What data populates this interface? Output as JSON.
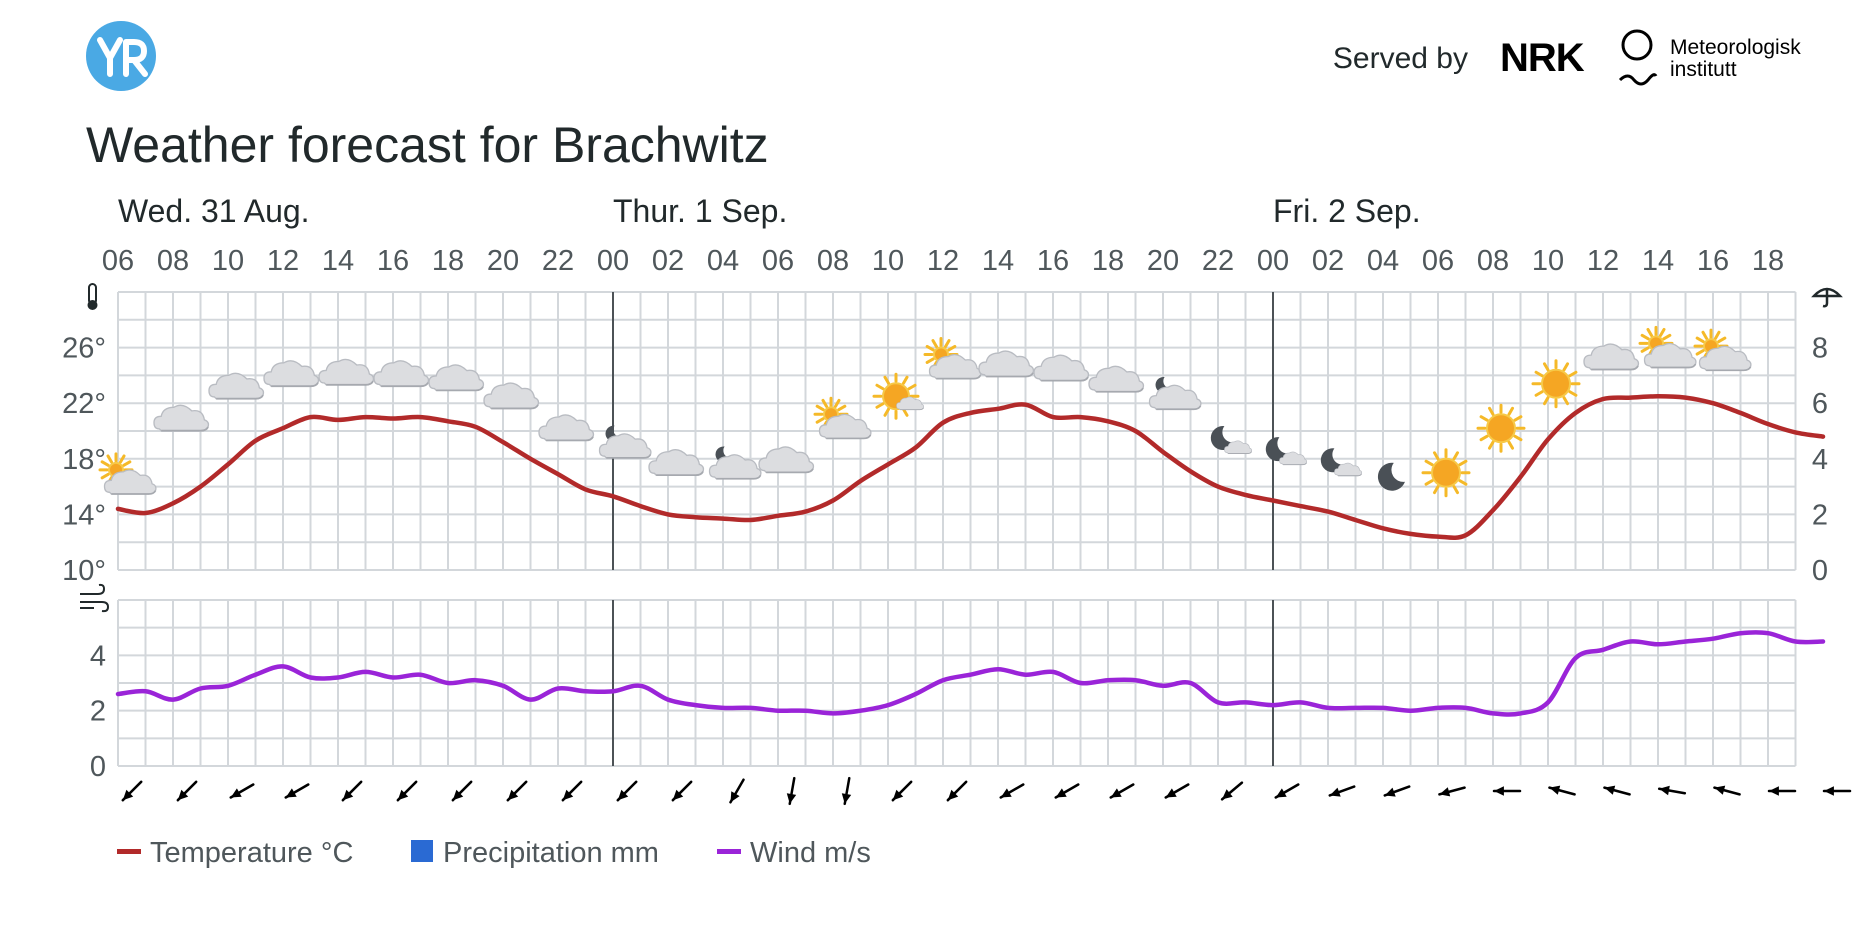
{
  "header": {
    "served_by": "Served by",
    "brand_nrk": "NRK",
    "brand_met": [
      "Meteorologisk",
      "institutt"
    ],
    "title": "Weather forecast for Brachwitz"
  },
  "colors": {
    "temperature": "#b22a2a",
    "precipitation": "#2a6ad3",
    "wind": "#9a24d8",
    "grid": "#d3d7db",
    "day_divider": "#4c5256",
    "yr_logo": "#4aa9e4"
  },
  "chart_data": {
    "type": "line",
    "x_unit": "hour",
    "start": "Wed. 31 Aug. 06",
    "x": [
      6,
      7,
      8,
      9,
      10,
      11,
      12,
      13,
      14,
      15,
      16,
      17,
      18,
      19,
      20,
      21,
      22,
      23,
      24,
      25,
      26,
      27,
      28,
      29,
      30,
      31,
      32,
      33,
      34,
      35,
      36,
      37,
      38,
      39,
      40,
      41,
      42,
      43,
      44,
      45,
      46,
      47,
      48,
      49,
      50,
      51,
      52,
      53,
      54,
      55,
      56,
      57,
      58,
      59,
      60,
      61,
      62,
      63,
      64,
      65,
      66,
      67,
      68
    ],
    "days": [
      {
        "label": "Wed. 31 Aug.",
        "start_hour": 6
      },
      {
        "label": "Thur. 1 Sep.",
        "start_hour": 24
      },
      {
        "label": "Fri. 2 Sep.",
        "start_hour": 48
      }
    ],
    "hour_ticks": [
      "06",
      "08",
      "10",
      "12",
      "14",
      "16",
      "18",
      "20",
      "22",
      "00",
      "02",
      "04",
      "06",
      "08",
      "10",
      "12",
      "14",
      "16",
      "18",
      "20",
      "22",
      "00",
      "02",
      "04",
      "06",
      "08",
      "10",
      "12",
      "14",
      "16",
      "18"
    ],
    "temperature": {
      "axis_ticks": [
        "10°",
        "14°",
        "18°",
        "22°",
        "26°"
      ],
      "ylim": [
        10,
        30
      ],
      "values": [
        14.4,
        14.1,
        14.8,
        16.0,
        17.6,
        19.3,
        20.2,
        21.0,
        20.8,
        21.0,
        20.9,
        21.0,
        20.7,
        20.3,
        19.2,
        18.0,
        16.9,
        15.8,
        15.3,
        14.6,
        14.0,
        13.8,
        13.7,
        13.6,
        13.9,
        14.2,
        15.0,
        16.4,
        17.6,
        18.8,
        20.6,
        21.3,
        21.6,
        21.9,
        21.0,
        21.0,
        20.7,
        20.0,
        18.5,
        17.1,
        16.0,
        15.4,
        15.0,
        14.6,
        14.2,
        13.6,
        13.0,
        12.6,
        12.4,
        12.5,
        14.3,
        16.7,
        19.4,
        21.3,
        22.3,
        22.4,
        22.5,
        22.4,
        22.0,
        21.3,
        20.5,
        19.9,
        19.6
      ]
    },
    "precipitation": {
      "axis_ticks": [
        "0",
        "2",
        "4",
        "6",
        "8"
      ],
      "ylim": [
        0,
        10
      ],
      "values": [
        0,
        0,
        0,
        0,
        0,
        0,
        0,
        0,
        0,
        0,
        0,
        0,
        0,
        0,
        0,
        0,
        0,
        0,
        0,
        0,
        0,
        0,
        0,
        0,
        0,
        0,
        0,
        0,
        0,
        0,
        0,
        0,
        0,
        0,
        0,
        0,
        0,
        0,
        0,
        0,
        0,
        0,
        0,
        0,
        0,
        0,
        0,
        0,
        0,
        0,
        0,
        0,
        0,
        0,
        0,
        0,
        0,
        0,
        0,
        0,
        0,
        0,
        0
      ]
    },
    "wind": {
      "axis_ticks": [
        "0",
        "2",
        "4"
      ],
      "ylim": [
        0,
        6
      ],
      "values": [
        2.6,
        2.7,
        2.4,
        2.8,
        2.9,
        3.3,
        3.6,
        3.2,
        3.2,
        3.4,
        3.2,
        3.3,
        3.0,
        3.1,
        2.9,
        2.4,
        2.8,
        2.7,
        2.7,
        2.9,
        2.4,
        2.2,
        2.1,
        2.1,
        2.0,
        2.0,
        1.9,
        2.0,
        2.2,
        2.6,
        3.1,
        3.3,
        3.5,
        3.3,
        3.4,
        3.0,
        3.1,
        3.1,
        2.9,
        3.0,
        2.3,
        2.3,
        2.2,
        2.3,
        2.1,
        2.1,
        2.1,
        2.0,
        2.1,
        2.1,
        1.9,
        1.9,
        2.3,
        3.9,
        4.2,
        4.5,
        4.4,
        4.5,
        4.6,
        4.8,
        4.8,
        4.5,
        4.5
      ]
    },
    "weather_icons": [
      {
        "hour": 6,
        "icon": "partly-cloudy-day",
        "temp": 16.2
      },
      {
        "hour": 8,
        "icon": "cloudy",
        "temp": 20.8
      },
      {
        "hour": 10,
        "icon": "cloudy",
        "temp": 23.1
      },
      {
        "hour": 12,
        "icon": "cloudy",
        "temp": 24.0
      },
      {
        "hour": 14,
        "icon": "cloudy",
        "temp": 24.1
      },
      {
        "hour": 16,
        "icon": "cloudy",
        "temp": 24.0
      },
      {
        "hour": 18,
        "icon": "cloudy",
        "temp": 23.7
      },
      {
        "hour": 20,
        "icon": "cloudy",
        "temp": 22.4
      },
      {
        "hour": 22,
        "icon": "cloudy",
        "temp": 20.1
      },
      {
        "hour": 24,
        "icon": "partly-cloudy-night",
        "temp": 18.8
      },
      {
        "hour": 26,
        "icon": "cloudy",
        "temp": 17.6
      },
      {
        "hour": 28,
        "icon": "partly-cloudy-night",
        "temp": 17.3
      },
      {
        "hour": 30,
        "icon": "cloudy",
        "temp": 17.8
      },
      {
        "hour": 32,
        "icon": "partly-cloudy-day",
        "temp": 20.2
      },
      {
        "hour": 34,
        "icon": "fair-day",
        "temp": 22.5
      },
      {
        "hour": 36,
        "icon": "partly-cloudy-day",
        "temp": 24.5
      },
      {
        "hour": 38,
        "icon": "cloudy",
        "temp": 24.7
      },
      {
        "hour": 40,
        "icon": "cloudy",
        "temp": 24.4
      },
      {
        "hour": 42,
        "icon": "cloudy",
        "temp": 23.6
      },
      {
        "hour": 44,
        "icon": "partly-cloudy-night",
        "temp": 22.3
      },
      {
        "hour": 46,
        "icon": "fair-night",
        "temp": 19.2
      },
      {
        "hour": 48,
        "icon": "fair-night",
        "temp": 18.4
      },
      {
        "hour": 50,
        "icon": "fair-night",
        "temp": 17.6
      },
      {
        "hour": 52,
        "icon": "clear-night",
        "temp": 16.7
      },
      {
        "hour": 54,
        "icon": "clear-sky-day",
        "temp": 17.0
      },
      {
        "hour": 56,
        "icon": "clear-sky-day",
        "temp": 20.2
      },
      {
        "hour": 58,
        "icon": "clear-sky-day",
        "temp": 23.4
      },
      {
        "hour": 60,
        "icon": "cloudy",
        "temp": 25.2
      },
      {
        "hour": 62,
        "icon": "partly-cloudy-day",
        "temp": 25.3
      },
      {
        "hour": 64,
        "icon": "partly-cloudy-day",
        "temp": 25.1
      }
    ],
    "wind_direction_from_deg": [
      45,
      45,
      60,
      60,
      45,
      45,
      45,
      45,
      45,
      45,
      45,
      30,
      10,
      10,
      45,
      45,
      60,
      60,
      60,
      60,
      50,
      60,
      70,
      70,
      75,
      90,
      105,
      105,
      100,
      105,
      90,
      90
    ]
  },
  "legend": [
    {
      "label": "Temperature °C",
      "type": "line",
      "series": "temperature"
    },
    {
      "label": "Precipitation mm",
      "type": "box",
      "series": "precipitation"
    },
    {
      "label": "Wind m/s",
      "type": "line",
      "series": "wind"
    }
  ],
  "icons": {
    "temperature_axis": "thermometer-icon",
    "precipitation_axis": "umbrella-icon",
    "wind_axis": "wind-icon"
  }
}
